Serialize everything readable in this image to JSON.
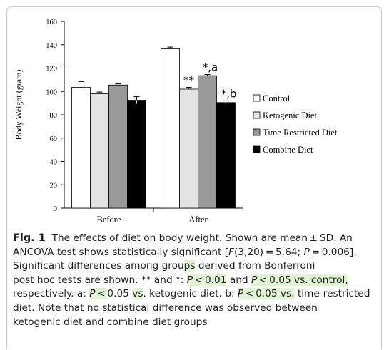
{
  "chart_data": {
    "type": "bar",
    "categories": [
      "Before",
      "After"
    ],
    "series": [
      {
        "name": "Control",
        "values": [
          103.5,
          136.5
        ],
        "errors": [
          5,
          1.5
        ],
        "color": "#ffffff"
      },
      {
        "name": "Ketogenic Diet",
        "values": [
          98,
          102
        ],
        "errors": [
          1.5,
          1.5
        ],
        "color": "#e3e3e3"
      },
      {
        "name": "Time Restricted Diet",
        "values": [
          105.5,
          113.5
        ],
        "errors": [
          1,
          1
        ],
        "color": "#999999"
      },
      {
        "name": "Combine Diet",
        "values": [
          92.5,
          90.5
        ],
        "errors": [
          3,
          1.5
        ],
        "color": "#000000"
      }
    ],
    "annotations": [
      {
        "series": 1,
        "category": 1,
        "text": "**"
      },
      {
        "series": 2,
        "category": 1,
        "text": "*,a"
      },
      {
        "series": 3,
        "category": 1,
        "text": "*,b"
      }
    ],
    "xlabel": "",
    "ylabel": "Body Weight (gram)",
    "ylim": [
      0,
      160
    ],
    "yticks": [
      0,
      20,
      40,
      60,
      80,
      100,
      120,
      140,
      160
    ],
    "grid": false,
    "legend": "right"
  },
  "caption": {
    "label": "Fig. 1",
    "line1": "The effects of diet on body weight. Shown are mean ± SD. An",
    "line2_a": "ANCOVA test shows statistically significant [",
    "line2_F": "F",
    "line2_b": "(3,20) = 5.64; ",
    "line2_P": "P",
    "line2_c": " = 0.006].",
    "line3_a": "Significant differences among grou",
    "line3_hl": "ps",
    "line3_b": " derived from Bonferroni",
    "line4_a": "post hoc tests are shown. ** and *: ",
    "line4_hl1_P": "P",
    "line4_hl1_rest": " < 0.01",
    "line4_mid": " and ",
    "line4_hl2_P": "P",
    "line4_hl2_rest": " < 0.05 vs. control,",
    "line5_a": "respectively. a: ",
    "line5_hl1_P": "P",
    "line5_hl1_rest": " < ",
    "line5_b": "0.05 ",
    "line5_hl2": "vs",
    "line5_c": ". ketogenic diet. b: ",
    "line5_hl3_P": "P",
    "line5_hl3_rest": " < 0.05 vs.",
    "line5_d": " time-restricted",
    "line6": "diet. Note that no statistical difference was observed between",
    "line7": "ketogenic diet and combine diet groups"
  }
}
